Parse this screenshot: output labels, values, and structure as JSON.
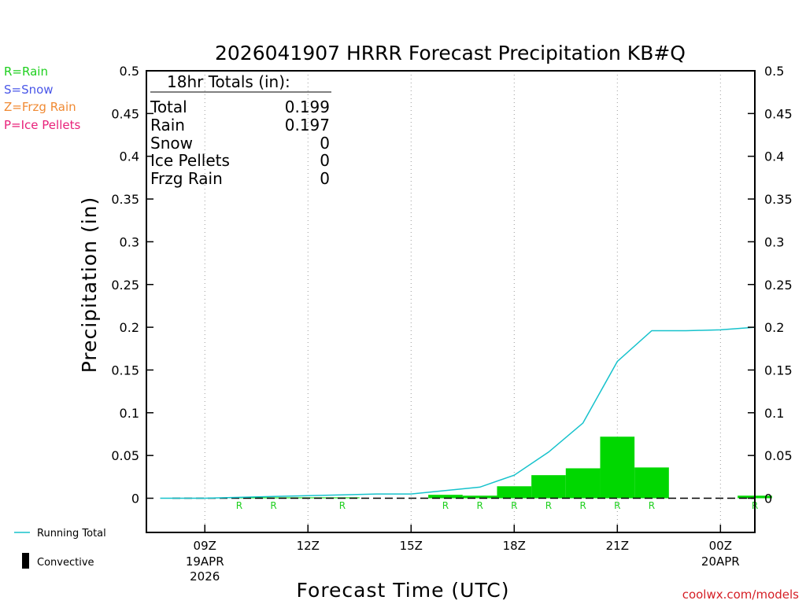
{
  "title": "2026041907 HRRR Forecast Precipitation KB#Q",
  "legend_types": [
    {
      "label": "R=Rain",
      "color": "#1ecf1e"
    },
    {
      "label": "S=Snow",
      "color": "#4a57e8"
    },
    {
      "label": "Z=Frzg Rain",
      "color": "#f08a33"
    },
    {
      "label": "P=Ice Pellets",
      "color": "#e8217a"
    }
  ],
  "totals": {
    "header": "18hr Totals (in):",
    "rows": [
      {
        "label": "Total",
        "value": "0.199"
      },
      {
        "label": "Rain",
        "value": "0.197"
      },
      {
        "label": "Snow",
        "value": "0"
      },
      {
        "label": "Ice Pellets",
        "value": "0"
      },
      {
        "label": "Frzg Rain",
        "value": "0"
      }
    ]
  },
  "bottom_legend": {
    "running_total": "Running Total",
    "convective": "Convective"
  },
  "watermark": "coolwx.com/models",
  "chart_data": {
    "type": "bar",
    "title": "2026041907 HRRR Forecast Precipitation KB#Q",
    "xlabel": "Forecast Time (UTC)",
    "ylabel": "Precipitation (in)",
    "ylim": [
      -0.04,
      0.5
    ],
    "y_ticks": [
      0,
      0.05,
      0.1,
      0.15,
      0.2,
      0.25,
      0.3,
      0.35,
      0.4,
      0.45,
      0.5
    ],
    "y_tick_labels": [
      "0",
      "0.05",
      "0.1",
      "0.15",
      "0.2",
      "0.25",
      "0.3",
      "0.35",
      "0.4",
      "0.45",
      "0.5"
    ],
    "xlim": [
      7.3,
      25
    ],
    "x_ticks": [
      {
        "hour": 9,
        "label": "09Z",
        "sub": [
          "19APR",
          "2026"
        ]
      },
      {
        "hour": 12,
        "label": "12Z",
        "sub": []
      },
      {
        "hour": 15,
        "label": "15Z",
        "sub": []
      },
      {
        "hour": 18,
        "label": "18Z",
        "sub": []
      },
      {
        "hour": 21,
        "label": "21Z",
        "sub": []
      },
      {
        "hour": 24,
        "label": "00Z",
        "sub": [
          "20APR"
        ]
      }
    ],
    "grid": "vertical dotted",
    "series": [
      {
        "name": "Hourly Precipitation",
        "color": "#00d700",
        "hours": [
          8,
          9,
          10,
          11,
          12,
          13,
          14,
          15,
          16,
          17,
          18,
          19,
          20,
          21,
          22,
          23,
          24,
          25
        ],
        "values": [
          0,
          0,
          0.001,
          0.001,
          0.001,
          0.001,
          0,
          0,
          0.004,
          0.003,
          0.014,
          0.027,
          0.035,
          0.072,
          0.036,
          0,
          0,
          0.003
        ],
        "ptype": [
          "",
          "",
          "R",
          "R",
          "",
          "R",
          "",
          "",
          "R",
          "R",
          "R",
          "R",
          "R",
          "R",
          "R",
          "",
          "",
          "R"
        ]
      },
      {
        "name": "Running Total",
        "color": "#16c2cc",
        "hours": [
          7.7,
          9,
          10,
          11,
          12,
          13,
          14,
          15,
          16,
          17,
          18,
          19,
          20,
          21,
          22,
          23,
          24,
          25
        ],
        "values": [
          0,
          0,
          0.001,
          0.002,
          0.003,
          0.004,
          0.005,
          0.005,
          0.009,
          0.013,
          0.027,
          0.054,
          0.088,
          0.16,
          0.196,
          0.196,
          0.197,
          0.2
        ]
      }
    ]
  }
}
